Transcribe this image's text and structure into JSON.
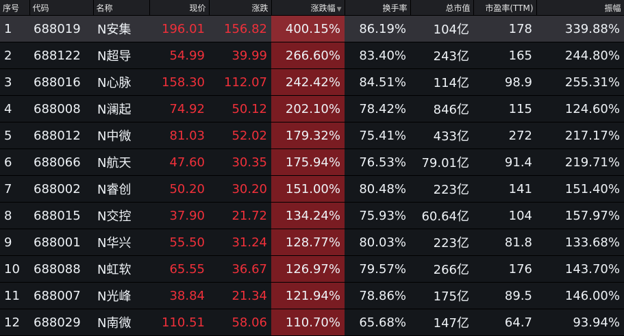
{
  "headers": [
    "序号",
    "代码",
    "名称",
    "现价",
    "涨跌",
    "涨跌幅",
    "换手率",
    "总市值",
    "市盈率(TTM)",
    "振幅"
  ],
  "sort_column": "涨跌幅",
  "sort_direction": "descending",
  "sort_icon": "triangle-down-icon",
  "colors": {
    "up": "#f0303a",
    "highlight_column": "#7a1c22",
    "selected_row": "#323238"
  },
  "rows": [
    [
      "1",
      "688019",
      "N安集",
      "196.01",
      "156.82",
      "400.15%",
      "86.19%",
      "104亿",
      "178",
      "339.88%"
    ],
    [
      "2",
      "688122",
      "N超导",
      "54.99",
      "39.99",
      "266.60%",
      "83.40%",
      "243亿",
      "165",
      "244.80%"
    ],
    [
      "3",
      "688016",
      "N心脉",
      "158.30",
      "112.07",
      "242.42%",
      "84.51%",
      "114亿",
      "98.9",
      "255.31%"
    ],
    [
      "4",
      "688008",
      "N澜起",
      "74.92",
      "50.12",
      "202.10%",
      "78.42%",
      "846亿",
      "115",
      "124.60%"
    ],
    [
      "5",
      "688012",
      "N中微",
      "81.03",
      "52.02",
      "179.32%",
      "75.41%",
      "433亿",
      "272",
      "217.17%"
    ],
    [
      "6",
      "688066",
      "N航天",
      "47.60",
      "30.35",
      "175.94%",
      "76.53%",
      "79.01亿",
      "91.4",
      "219.71%"
    ],
    [
      "7",
      "688002",
      "N睿创",
      "50.20",
      "30.20",
      "151.00%",
      "80.48%",
      "223亿",
      "141",
      "151.40%"
    ],
    [
      "8",
      "688015",
      "N交控",
      "37.90",
      "21.72",
      "134.24%",
      "75.93%",
      "60.64亿",
      "104",
      "157.97%"
    ],
    [
      "9",
      "688001",
      "N华兴",
      "55.50",
      "31.24",
      "128.77%",
      "80.03%",
      "223亿",
      "81.8",
      "133.68%"
    ],
    [
      "10",
      "688088",
      "N虹软",
      "65.55",
      "36.67",
      "126.97%",
      "79.57%",
      "266亿",
      "176",
      "143.70%"
    ],
    [
      "11",
      "688007",
      "N光峰",
      "38.84",
      "21.34",
      "121.94%",
      "78.86%",
      "175亿",
      "89.5",
      "146.00%"
    ],
    [
      "12",
      "688029",
      "N南微",
      "110.51",
      "58.06",
      "110.70%",
      "65.68%",
      "147亿",
      "64.7",
      "93.94%"
    ]
  ]
}
